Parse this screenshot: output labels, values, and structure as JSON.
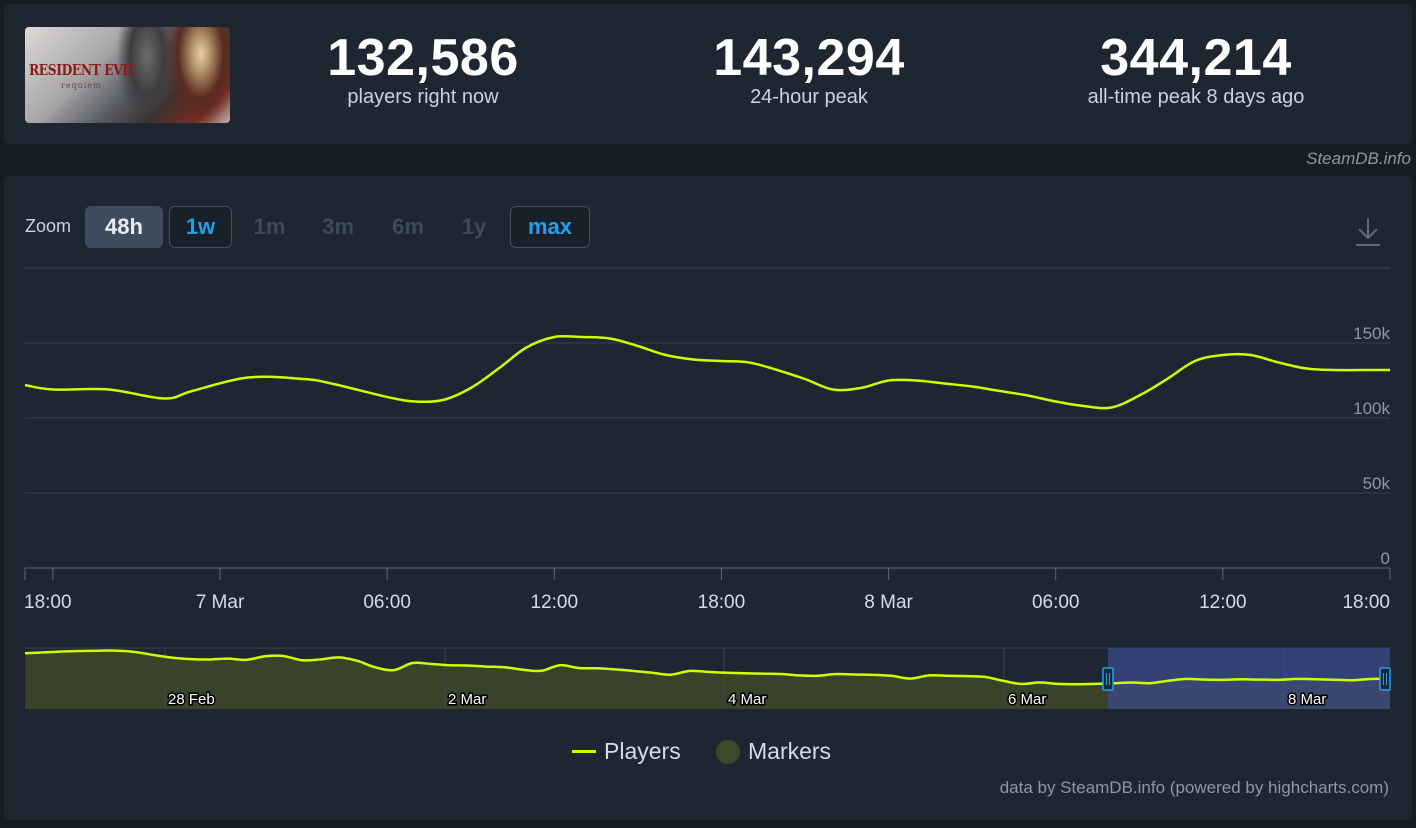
{
  "stats": {
    "current_value": "132,586",
    "current_label": "players right now",
    "peak24_value": "143,294",
    "peak24_label": "24-hour peak",
    "alltime_value": "344,214",
    "alltime_label": "all-time peak 8 days ago"
  },
  "cover": {
    "title": "RESIDENT EVIL",
    "subtitle": "requiem"
  },
  "credit": "SteamDB.info",
  "zoom": {
    "label": "Zoom",
    "buttons": [
      "48h",
      "1w",
      "1m",
      "3m",
      "6m",
      "1y",
      "max"
    ],
    "active": "48h",
    "outlined": [
      "1w",
      "max"
    ]
  },
  "legend": {
    "players": "Players",
    "markers": "Markers"
  },
  "footer_credit": "data by SteamDB.info (powered by highcharts.com)",
  "colors": {
    "line": "#ccff00",
    "marker": "#3f4b2a",
    "navigator_fill": "#3a4229",
    "navigator_selection": "#3b4a8a",
    "accent_blue": "#1ea2f0"
  },
  "chart_data": {
    "type": "line",
    "title": "",
    "xlabel": "",
    "ylabel": "",
    "ylim": [
      0,
      165000
    ],
    "yticks": [
      0,
      50000,
      100000,
      150000
    ],
    "ytick_labels": [
      "0",
      "50k",
      "100k",
      "150k"
    ],
    "xlim_hours": [
      -1,
      48
    ],
    "xticks_hours": [
      0,
      6,
      12,
      18,
      24,
      30,
      36,
      42,
      48
    ],
    "xtick_labels": [
      "18:00",
      "7 Mar",
      "06:00",
      "12:00",
      "18:00",
      "8 Mar",
      "06:00",
      "12:00",
      "18:00"
    ],
    "series": [
      {
        "name": "Players",
        "x_hours": [
          -1,
          0,
          2,
          4,
          5,
          7,
          9,
          10,
          12,
          13,
          14,
          15,
          16,
          17,
          18,
          19,
          20,
          21,
          22,
          23,
          24,
          25,
          26,
          27,
          28,
          29,
          30,
          31,
          32,
          33,
          34,
          35,
          36,
          37,
          38,
          39,
          40,
          41,
          42,
          43,
          44,
          45,
          46,
          47,
          48
        ],
        "values": [
          122000,
          119000,
          119000,
          113000,
          118000,
          127000,
          126000,
          123000,
          114000,
          111000,
          112000,
          120000,
          133000,
          147000,
          154000,
          154000,
          153000,
          148000,
          142000,
          139000,
          138000,
          137000,
          132000,
          126000,
          119000,
          120000,
          125000,
          125000,
          123000,
          121000,
          118000,
          115000,
          111000,
          108000,
          107000,
          115000,
          126000,
          138000,
          142000,
          142000,
          137000,
          133000,
          132000,
          132000,
          132000
        ]
      }
    ],
    "navigator": {
      "xtick_labels": [
        "28 Feb",
        "2 Mar",
        "4 Mar",
        "6 Mar",
        "8 Mar"
      ],
      "values": [
        315000,
        320000,
        325000,
        328000,
        330000,
        330000,
        322000,
        305000,
        290000,
        282000,
        280000,
        285000,
        278000,
        298000,
        300000,
        276000,
        280000,
        292000,
        273000,
        235000,
        220000,
        260000,
        255000,
        248000,
        246000,
        240000,
        236000,
        222000,
        216000,
        248000,
        232000,
        230000,
        224000,
        215000,
        205000,
        194000,
        215000,
        210000,
        205000,
        202000,
        200000,
        198000,
        190000,
        188000,
        198000,
        195000,
        193000,
        187000,
        172000,
        190000,
        188000,
        186000,
        182000,
        160000,
        142000,
        150000,
        142000,
        140000,
        142000,
        145000,
        150000,
        146000,
        160000,
        170000,
        166000,
        165000,
        168000,
        166000,
        165000,
        170000,
        168000,
        165000,
        163000,
        170000,
        172000
      ]
    }
  }
}
